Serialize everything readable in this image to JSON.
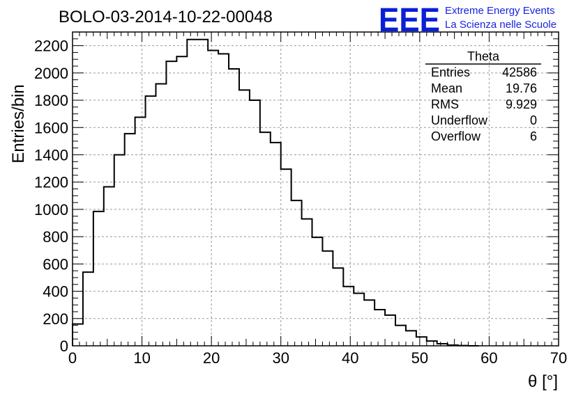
{
  "header": {
    "title": "BOLO-03-2014-10-22-00048",
    "logo_text": "EEE",
    "logo_line1": "Extreme Energy Events",
    "logo_line2": "La Scienza nelle Scuole"
  },
  "stats": {
    "name": "Theta",
    "rows": [
      {
        "label": "Entries",
        "value": "42586"
      },
      {
        "label": "Mean",
        "value": "19.76"
      },
      {
        "label": "RMS",
        "value": "9.929"
      },
      {
        "label": "Underflow",
        "value": "0"
      },
      {
        "label": "Overflow",
        "value": "6"
      }
    ]
  },
  "colors": {
    "line": "#000000",
    "grid": "#999999",
    "logo": "#0b1fd6"
  },
  "chart_data": {
    "type": "bar",
    "style": "step-histogram",
    "title": "BOLO-03-2014-10-22-00048",
    "xlabel": "θ [°]",
    "ylabel": "Entries/bin",
    "xlim": [
      0,
      70
    ],
    "ylim": [
      0,
      2300
    ],
    "x_ticks": [
      0,
      10,
      20,
      30,
      40,
      50,
      60,
      70
    ],
    "y_ticks": [
      0,
      200,
      400,
      600,
      800,
      1000,
      1200,
      1400,
      1600,
      1800,
      2000,
      2200
    ],
    "bin_width": 1.5,
    "bin_start": 0,
    "values": [
      160,
      540,
      985,
      1165,
      1400,
      1555,
      1675,
      1830,
      1920,
      2085,
      2120,
      2245,
      2245,
      2165,
      2140,
      2030,
      1875,
      1800,
      1565,
      1490,
      1295,
      1065,
      930,
      795,
      695,
      570,
      435,
      385,
      335,
      265,
      225,
      150,
      110,
      65,
      35,
      15,
      5,
      2,
      0
    ],
    "grid": true,
    "legend": "none"
  }
}
